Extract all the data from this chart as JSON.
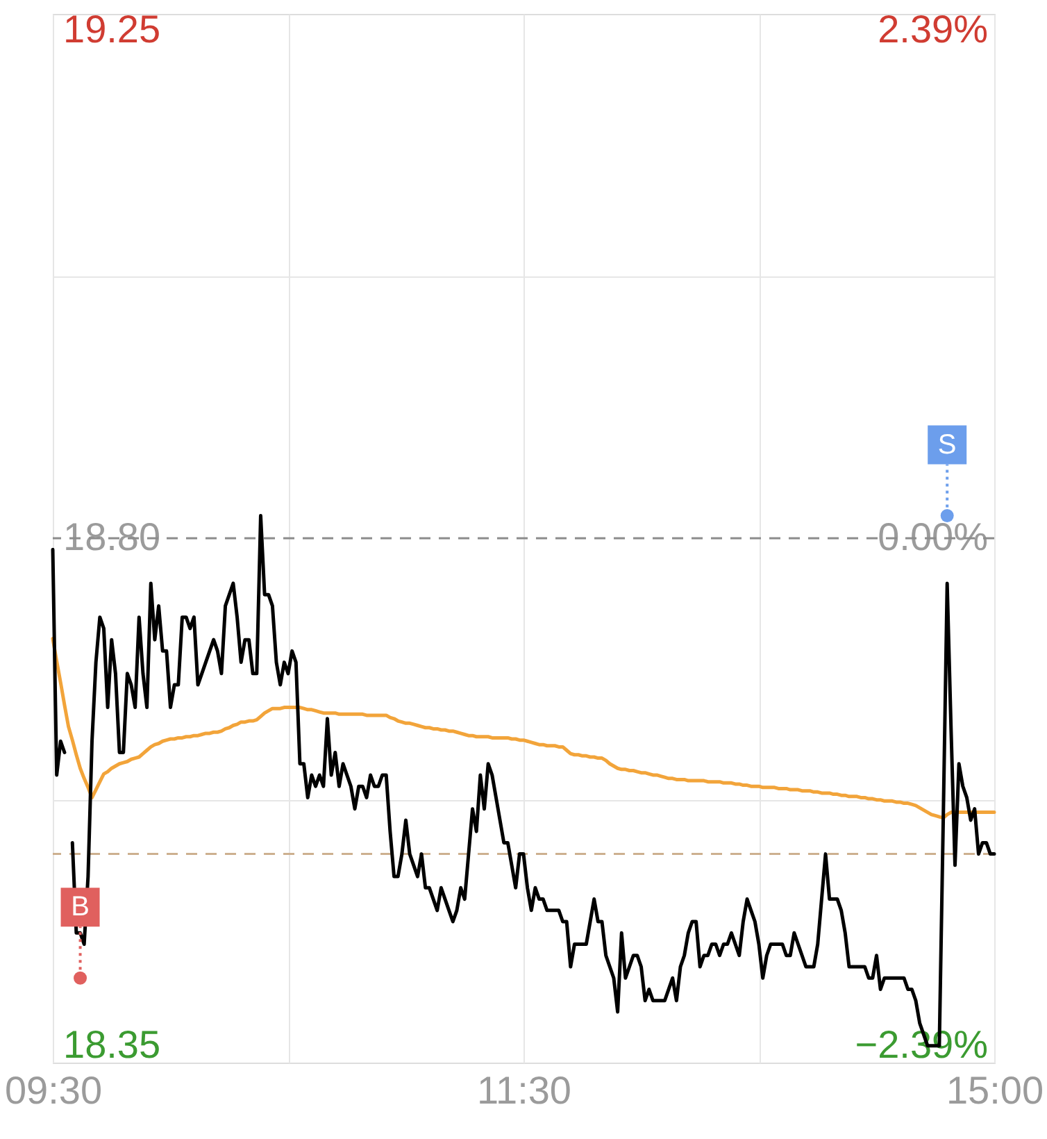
{
  "chart_data": {
    "type": "line",
    "categories": [
      "09:30",
      null,
      null,
      null,
      null,
      null,
      null,
      null,
      null,
      null,
      null,
      null,
      null,
      null,
      null,
      null,
      null,
      null,
      null,
      null,
      null,
      null,
      null,
      null,
      null,
      null,
      null,
      null,
      null,
      null,
      null,
      null,
      null,
      null,
      null,
      null,
      null,
      null,
      null,
      null,
      null,
      null,
      null,
      null,
      null,
      null,
      null,
      null,
      null,
      null,
      null,
      null,
      null,
      null,
      null,
      null,
      null,
      null,
      null,
      null,
      null,
      null,
      null,
      null,
      null,
      null,
      null,
      null,
      null,
      null,
      null,
      null,
      null,
      null,
      null,
      null,
      null,
      null,
      null,
      null,
      null,
      null,
      null,
      null,
      null,
      null,
      null,
      null,
      null,
      null,
      null,
      null,
      null,
      null,
      null,
      null,
      null,
      null,
      null,
      null,
      null,
      null,
      null,
      null,
      null,
      null,
      null,
      null,
      null,
      null,
      null,
      null,
      null,
      null,
      null,
      null,
      null,
      null,
      null,
      null,
      "11:30",
      null,
      null,
      null,
      null,
      null,
      null,
      null,
      null,
      null,
      null,
      null,
      null,
      null,
      null,
      null,
      null,
      null,
      null,
      null,
      null,
      null,
      null,
      null,
      null,
      null,
      null,
      null,
      null,
      null,
      null,
      null,
      null,
      null,
      null,
      null,
      null,
      null,
      null,
      null,
      null,
      null,
      null,
      null,
      null,
      null,
      null,
      null,
      null,
      null,
      null,
      null,
      null,
      null,
      null,
      null,
      null,
      null,
      null,
      null,
      null,
      null,
      null,
      null,
      null,
      null,
      null,
      null,
      null,
      null,
      null,
      null,
      null,
      null,
      null,
      null,
      null,
      null,
      null,
      null,
      null,
      null,
      null,
      null,
      null,
      null,
      null,
      null,
      null,
      null,
      null,
      null,
      null,
      null,
      null,
      null,
      null,
      null,
      null,
      null,
      null,
      null,
      null,
      null,
      null,
      null,
      null,
      null,
      null,
      null,
      null,
      null,
      null,
      null,
      null,
      null,
      null,
      null,
      null,
      null,
      "15:00"
    ],
    "series": [
      {
        "color": "#f2a43a",
        "values": [
          18.711,
          18.691,
          18.672,
          18.652,
          18.633,
          18.621,
          18.608,
          18.596,
          18.587,
          18.579,
          18.57,
          18.577,
          18.584,
          18.591,
          18.593,
          18.596,
          18.598,
          18.6,
          18.601,
          18.602,
          18.604,
          18.605,
          18.606,
          18.609,
          18.612,
          18.615,
          18.617,
          18.618,
          18.62,
          18.621,
          18.622,
          18.622,
          18.623,
          18.623,
          18.624,
          18.624,
          18.625,
          18.625,
          18.626,
          18.627,
          18.627,
          18.628,
          18.628,
          18.629,
          18.631,
          18.632,
          18.634,
          18.635,
          18.637,
          18.637,
          18.638,
          18.638,
          18.639,
          18.642,
          18.645,
          18.647,
          18.649,
          18.649,
          18.649,
          18.65,
          18.65,
          18.65,
          18.65,
          18.65,
          18.649,
          18.648,
          18.648,
          18.647,
          18.646,
          18.645,
          18.645,
          18.645,
          18.645,
          18.644,
          18.644,
          18.644,
          18.644,
          18.644,
          18.644,
          18.644,
          18.643,
          18.643,
          18.643,
          18.643,
          18.643,
          18.643,
          18.641,
          18.64,
          18.638,
          18.637,
          18.636,
          18.636,
          18.635,
          18.634,
          18.633,
          18.632,
          18.632,
          18.631,
          18.631,
          18.63,
          18.63,
          18.629,
          18.629,
          18.628,
          18.627,
          18.626,
          18.625,
          18.625,
          18.624,
          18.624,
          18.624,
          18.624,
          18.623,
          18.623,
          18.623,
          18.623,
          18.623,
          18.622,
          18.622,
          18.621,
          18.621,
          18.62,
          18.619,
          18.618,
          18.617,
          18.617,
          18.616,
          18.616,
          18.616,
          18.615,
          18.615,
          18.612,
          18.609,
          18.608,
          18.608,
          18.607,
          18.607,
          18.606,
          18.606,
          18.605,
          18.605,
          18.603,
          18.6,
          18.598,
          18.596,
          18.595,
          18.595,
          18.594,
          18.594,
          18.593,
          18.592,
          18.592,
          18.591,
          18.59,
          18.59,
          18.589,
          18.588,
          18.587,
          18.587,
          18.586,
          18.586,
          18.586,
          18.585,
          18.585,
          18.585,
          18.585,
          18.585,
          18.584,
          18.584,
          18.584,
          18.584,
          18.583,
          18.583,
          18.583,
          18.582,
          18.582,
          18.581,
          18.581,
          18.58,
          18.58,
          18.58,
          18.579,
          18.579,
          18.579,
          18.579,
          18.578,
          18.578,
          18.578,
          18.577,
          18.577,
          18.577,
          18.576,
          18.576,
          18.576,
          18.575,
          18.575,
          18.574,
          18.574,
          18.574,
          18.573,
          18.573,
          18.572,
          18.572,
          18.571,
          18.571,
          18.571,
          18.57,
          18.57,
          18.569,
          18.569,
          18.568,
          18.568,
          18.567,
          18.567,
          18.567,
          18.566,
          18.566,
          18.565,
          18.565,
          18.564,
          18.563,
          18.561,
          18.559,
          18.557,
          18.555,
          18.554,
          18.553,
          18.552,
          18.555,
          18.557,
          18.557,
          18.557,
          18.557,
          18.557,
          18.557,
          18.557,
          18.557,
          18.557,
          18.557,
          18.557,
          18.557
        ]
      },
      {
        "color": "#000000",
        "values": [
          18.79,
          18.59,
          18.62,
          18.61,
          null,
          18.53,
          18.45,
          18.45,
          18.44,
          18.5,
          18.62,
          18.69,
          18.73,
          18.72,
          18.65,
          18.71,
          18.68,
          18.61,
          18.61,
          18.68,
          18.67,
          18.65,
          18.73,
          18.68,
          18.65,
          18.76,
          18.71,
          18.74,
          18.7,
          18.7,
          18.65,
          18.67,
          18.67,
          18.73,
          18.73,
          18.72,
          18.73,
          18.67,
          18.68,
          18.69,
          18.7,
          18.71,
          18.7,
          18.68,
          18.74,
          18.75,
          18.76,
          18.73,
          18.69,
          18.71,
          18.71,
          18.68,
          18.68,
          18.82,
          18.75,
          18.75,
          18.74,
          18.69,
          18.67,
          18.69,
          18.68,
          18.7,
          18.69,
          18.6,
          18.6,
          18.57,
          18.59,
          18.58,
          18.59,
          18.58,
          18.64,
          18.59,
          18.61,
          18.58,
          18.6,
          18.59,
          18.58,
          18.56,
          18.58,
          18.58,
          18.57,
          18.59,
          18.58,
          18.58,
          18.59,
          18.59,
          18.54,
          18.5,
          18.5,
          18.52,
          18.55,
          18.52,
          18.51,
          18.5,
          18.52,
          18.49,
          18.49,
          18.48,
          18.47,
          18.49,
          18.48,
          18.47,
          18.46,
          18.47,
          18.49,
          18.48,
          18.52,
          18.56,
          18.54,
          18.59,
          18.56,
          18.6,
          18.59,
          18.57,
          18.55,
          18.53,
          18.53,
          18.51,
          18.49,
          18.52,
          18.52,
          18.49,
          18.47,
          18.49,
          18.48,
          18.48,
          18.47,
          18.47,
          18.47,
          18.47,
          18.46,
          18.46,
          18.42,
          18.44,
          18.44,
          18.44,
          18.44,
          18.46,
          18.48,
          18.46,
          18.46,
          18.43,
          18.42,
          18.41,
          18.38,
          18.45,
          18.41,
          18.42,
          18.43,
          18.43,
          18.42,
          18.39,
          18.4,
          18.39,
          18.39,
          18.39,
          18.39,
          18.4,
          18.41,
          18.39,
          18.42,
          18.43,
          18.45,
          18.46,
          18.46,
          18.42,
          18.43,
          18.43,
          18.44,
          18.44,
          18.43,
          18.44,
          18.44,
          18.45,
          18.44,
          18.43,
          18.46,
          18.48,
          18.47,
          18.46,
          18.44,
          18.41,
          18.43,
          18.44,
          18.44,
          18.44,
          18.44,
          18.43,
          18.43,
          18.45,
          18.44,
          18.43,
          18.42,
          18.42,
          18.42,
          18.44,
          18.48,
          18.52,
          18.48,
          18.48,
          18.48,
          18.47,
          18.45,
          18.42,
          18.42,
          18.42,
          18.42,
          18.42,
          18.41,
          18.41,
          18.43,
          18.4,
          18.41,
          18.41,
          18.41,
          18.41,
          18.41,
          18.41,
          18.4,
          18.4,
          18.39,
          18.37,
          18.36,
          18.35,
          18.35,
          18.35,
          18.35,
          18.55,
          18.76,
          18.63,
          18.51,
          18.6,
          18.58,
          18.57,
          18.55,
          18.56,
          18.52,
          18.53,
          18.53,
          18.52,
          18.52
        ]
      },
      {
        "type": "scatter",
        "name": "B",
        "color": "#e0605e",
        "values": [
          null,
          null,
          null,
          null,
          null,
          null,
          null,
          18.41,
          null,
          null,
          null,
          null,
          null,
          null,
          null,
          null,
          null,
          null,
          null,
          null,
          null,
          null,
          null,
          null,
          null,
          null,
          null,
          null,
          null,
          null,
          null,
          null,
          null,
          null,
          null,
          null,
          null,
          null,
          null,
          null,
          null,
          null,
          null,
          null,
          null,
          null,
          null,
          null,
          null,
          null,
          null,
          null,
          null,
          null,
          null,
          null,
          null,
          null,
          null,
          null,
          null,
          null,
          null,
          null,
          null,
          null,
          null,
          null,
          null,
          null,
          null,
          null,
          null,
          null,
          null,
          null,
          null,
          null,
          null,
          null,
          null,
          null,
          null,
          null,
          null,
          null,
          null,
          null,
          null,
          null,
          null,
          null,
          null,
          null,
          null,
          null,
          null,
          null,
          null,
          null,
          null,
          null,
          null,
          null,
          null,
          null,
          null,
          null,
          null,
          null,
          null,
          null,
          null,
          null,
          null,
          null,
          null,
          null,
          null,
          null,
          null,
          null,
          null,
          null,
          null,
          null,
          null,
          null,
          null,
          null,
          null,
          null,
          null,
          null,
          null,
          null,
          null,
          null,
          null,
          null,
          null,
          null,
          null,
          null,
          null,
          null,
          null,
          null,
          null,
          null,
          null,
          null,
          null,
          null,
          null,
          null,
          null,
          null,
          null,
          null,
          null,
          null,
          null,
          null,
          null,
          null,
          null,
          null,
          null,
          null,
          null,
          null,
          null,
          null,
          null,
          null,
          null,
          null,
          null,
          null,
          null,
          null,
          null,
          null,
          null,
          null,
          null,
          null,
          null,
          null,
          null,
          null,
          null,
          null,
          null,
          null,
          null,
          null,
          null,
          null,
          null,
          null,
          null,
          null,
          null,
          null,
          null,
          null,
          null,
          null,
          null,
          null,
          null,
          null,
          null,
          null,
          null,
          null,
          null,
          null,
          null,
          null,
          null,
          null,
          null,
          null,
          null,
          null,
          null,
          null,
          null,
          null,
          null,
          null,
          null,
          null,
          null,
          null,
          null,
          null,
          null
        ]
      },
      {
        "type": "scatter",
        "name": "S",
        "color": "#6c9eec",
        "values": [
          null,
          null,
          null,
          null,
          null,
          null,
          null,
          null,
          null,
          null,
          null,
          null,
          null,
          null,
          null,
          null,
          null,
          null,
          null,
          null,
          null,
          null,
          null,
          null,
          null,
          null,
          null,
          null,
          null,
          null,
          null,
          null,
          null,
          null,
          null,
          null,
          null,
          null,
          null,
          null,
          null,
          null,
          null,
          null,
          null,
          null,
          null,
          null,
          null,
          null,
          null,
          null,
          null,
          null,
          null,
          null,
          null,
          null,
          null,
          null,
          null,
          null,
          null,
          null,
          null,
          null,
          null,
          null,
          null,
          null,
          null,
          null,
          null,
          null,
          null,
          null,
          null,
          null,
          null,
          null,
          null,
          null,
          null,
          null,
          null,
          null,
          null,
          null,
          null,
          null,
          null,
          null,
          null,
          null,
          null,
          null,
          null,
          null,
          null,
          null,
          null,
          null,
          null,
          null,
          null,
          null,
          null,
          null,
          null,
          null,
          null,
          null,
          null,
          null,
          null,
          null,
          null,
          null,
          null,
          null,
          null,
          null,
          null,
          null,
          null,
          null,
          null,
          null,
          null,
          null,
          null,
          null,
          null,
          null,
          null,
          null,
          null,
          null,
          null,
          null,
          null,
          null,
          null,
          null,
          null,
          null,
          null,
          null,
          null,
          null,
          null,
          null,
          null,
          null,
          null,
          null,
          null,
          null,
          null,
          null,
          null,
          null,
          null,
          null,
          null,
          null,
          null,
          null,
          null,
          null,
          null,
          null,
          null,
          null,
          null,
          null,
          null,
          null,
          null,
          null,
          null,
          null,
          null,
          null,
          null,
          null,
          null,
          null,
          null,
          null,
          null,
          null,
          null,
          null,
          null,
          null,
          null,
          null,
          null,
          null,
          null,
          null,
          null,
          null,
          null,
          null,
          null,
          null,
          null,
          null,
          null,
          null,
          null,
          null,
          null,
          null,
          null,
          null,
          null,
          null,
          null,
          null,
          null,
          null,
          null,
          null,
          null,
          null,
          18.82,
          null,
          null,
          null,
          null,
          null,
          null,
          null,
          null,
          null,
          null,
          null,
          null
        ]
      }
    ],
    "ylim": [
      18.335,
      19.265
    ],
    "yticks": [
      18.35,
      {
        "value": 18.568,
        "label": null
      },
      {
        "value": 18.8,
        "label": "18.80"
      },
      {
        "value": 19.032,
        "label": null
      },
      19.25
    ],
    "y2lim": [
      -2.47,
      2.47
    ],
    "y2ticks": [
      {
        "value": -2.39,
        "label": "−2.39%"
      },
      {
        "value": 0,
        "label": "0.00%"
      },
      {
        "value": 2.39,
        "label": "2.39%"
      }
    ],
    "ref_lines": [
      {
        "axis": "y2",
        "value": 0,
        "color": "#8c8c8c",
        "line_style": "dashed"
      },
      {
        "axis": "y",
        "value": 18.52,
        "color": "#cdb08f",
        "line_style": "dashed"
      }
    ],
    "grid": true
  }
}
